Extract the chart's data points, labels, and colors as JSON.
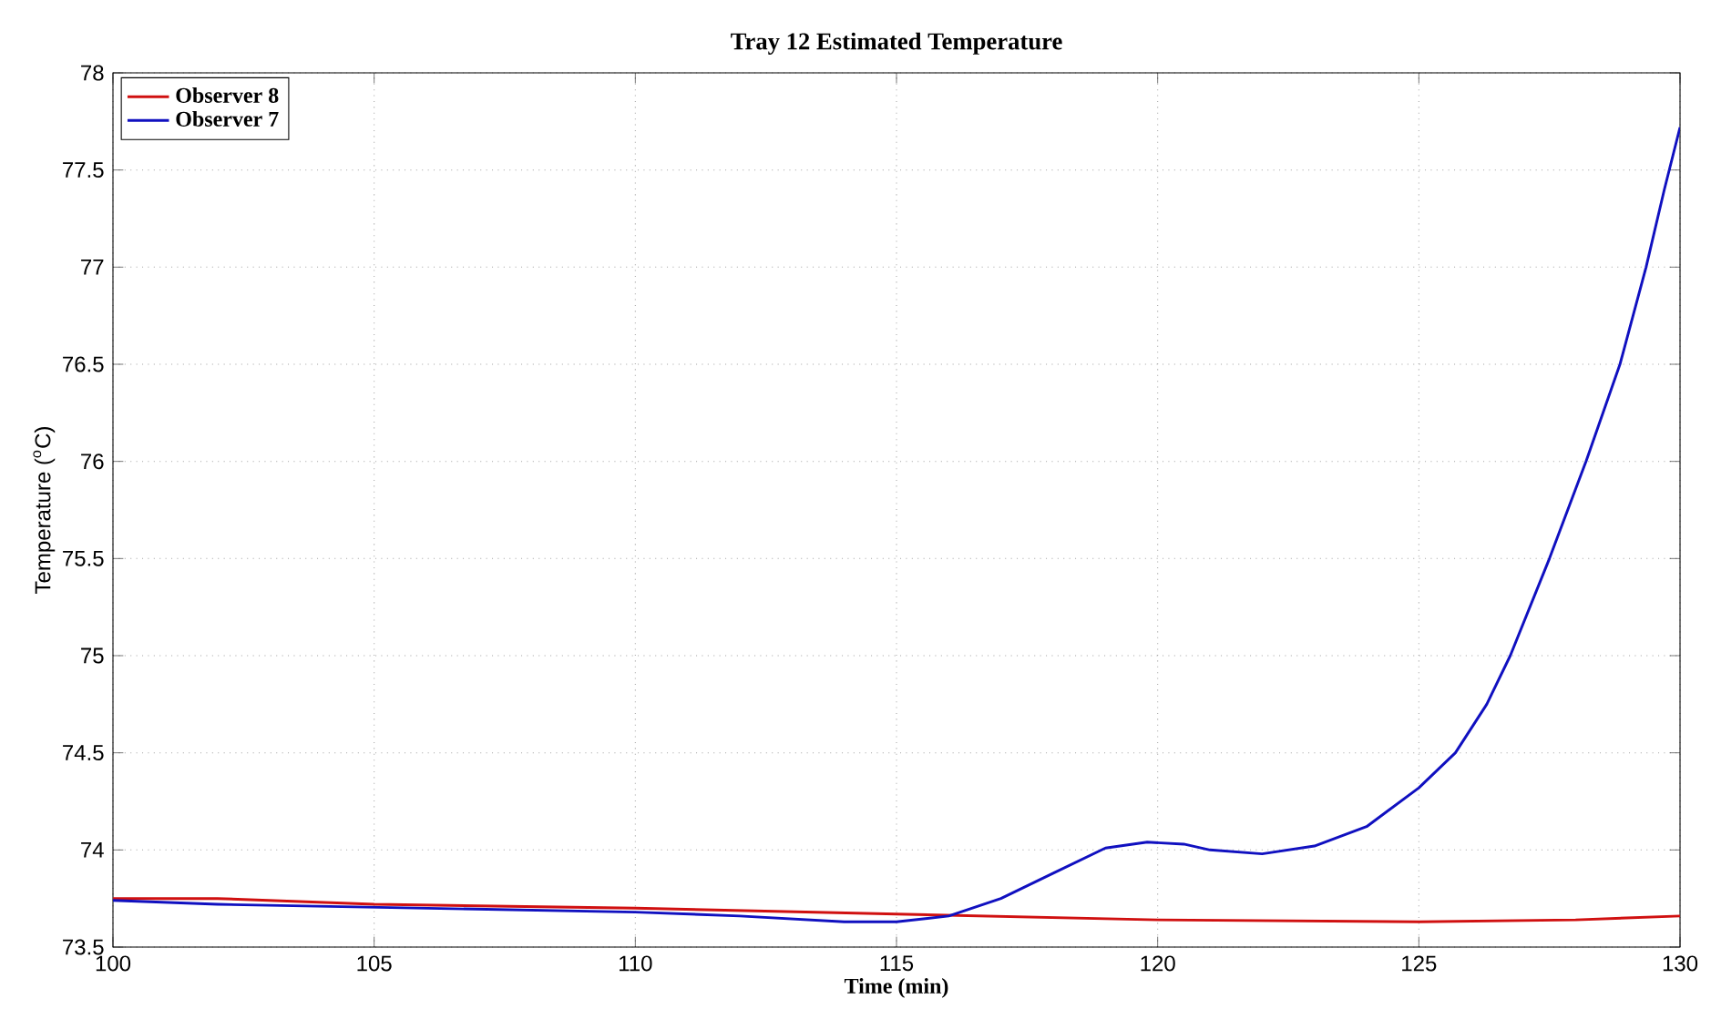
{
  "chart_data": {
    "type": "line",
    "title": "Tray 12 Estimated Temperature",
    "xlabel": "Time (min)",
    "ylabel": "Temperature ($^{o}$C)",
    "xlim": [
      100,
      130
    ],
    "ylim": [
      73.5,
      78
    ],
    "xticks": [
      100,
      105,
      110,
      115,
      120,
      125,
      130
    ],
    "yticks": [
      73.5,
      74,
      74.5,
      75,
      75.5,
      76,
      76.5,
      77,
      77.5,
      78
    ],
    "grid": true,
    "legend": "top left",
    "marker": "none",
    "line_style": "solid",
    "series": [
      {
        "name": "Observer 8",
        "color": "#d01010",
        "x": [
          100,
          102,
          105,
          110,
          115,
          120,
          125,
          128,
          130
        ],
        "values": [
          73.75,
          73.75,
          73.72,
          73.7,
          73.67,
          73.64,
          73.63,
          73.64,
          73.66
        ]
      },
      {
        "name": "Observer 7",
        "color": "#1010c0",
        "x": [
          100,
          102,
          104,
          106,
          108,
          110,
          112,
          114,
          115,
          116,
          117,
          118,
          119,
          119.8,
          120.5,
          121,
          122,
          123,
          124,
          125,
          125.7,
          126.3,
          126.75,
          127.5,
          128.2,
          128.85,
          129.35,
          129.7,
          130
        ],
        "values": [
          73.74,
          73.72,
          73.71,
          73.7,
          73.69,
          73.68,
          73.66,
          73.63,
          73.63,
          73.66,
          73.75,
          73.88,
          74.01,
          74.04,
          74.03,
          74.0,
          73.98,
          74.02,
          74.12,
          74.32,
          74.5,
          74.75,
          75.0,
          75.5,
          76.0,
          76.5,
          77.0,
          77.4,
          77.72
        ]
      }
    ]
  }
}
